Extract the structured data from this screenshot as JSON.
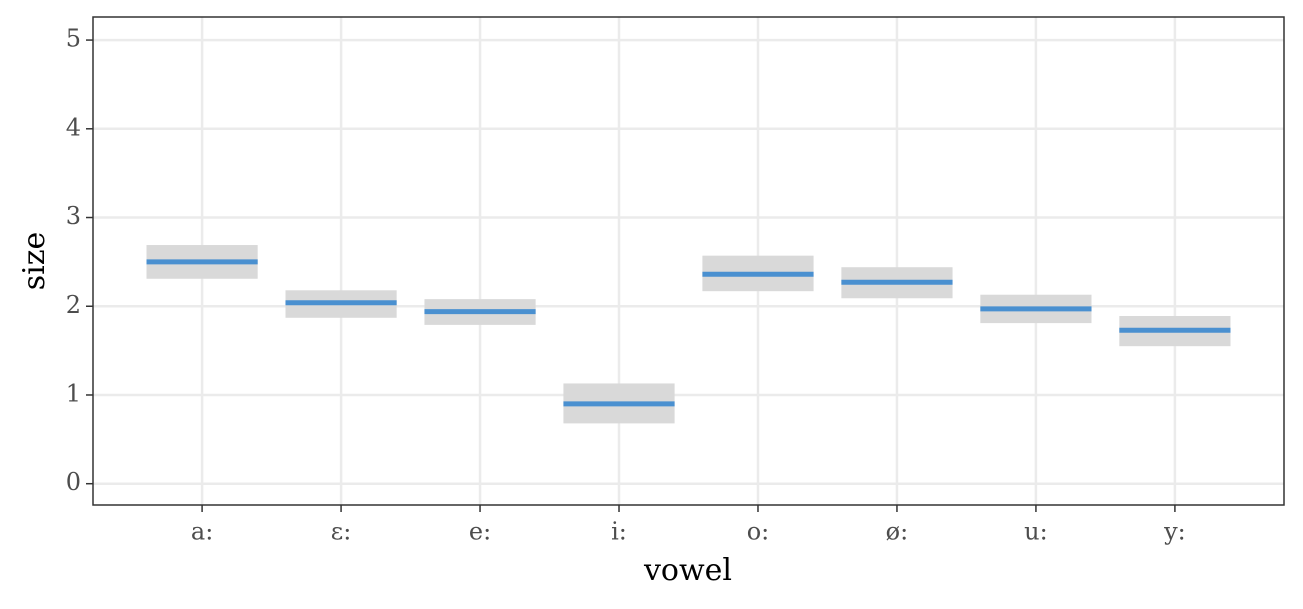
{
  "chart_data": {
    "type": "crossbar",
    "x_label": "vowel",
    "y_label": "size",
    "categories": [
      "a:",
      "ɛ:",
      "e:",
      "i:",
      "o:",
      "ø:",
      "u:",
      "y:"
    ],
    "values": [
      2.5,
      2.04,
      1.94,
      0.9,
      2.36,
      2.27,
      1.97,
      1.73
    ],
    "lower": [
      2.31,
      1.87,
      1.79,
      0.68,
      2.17,
      2.09,
      1.81,
      1.55
    ],
    "upper": [
      2.69,
      2.18,
      2.08,
      1.13,
      2.57,
      2.44,
      2.13,
      1.89
    ],
    "color": "#4a90d0",
    "band_color": "#d9d9d9",
    "ylim": [
      -0.24,
      5.26
    ],
    "yticks": [
      0,
      1,
      2,
      3,
      4,
      5
    ],
    "grid": true
  }
}
